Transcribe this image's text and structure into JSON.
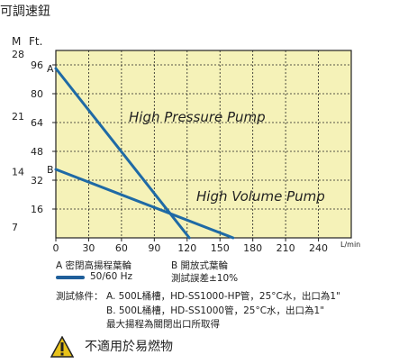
{
  "page_title": "可調速鈕",
  "chart_data": {
    "type": "line",
    "x_ticks": [
      "0",
      "30",
      "60",
      "90",
      "120",
      "150",
      "180",
      "210",
      "240"
    ],
    "x_unit": "L/min",
    "y_left_label": "M",
    "y_right_label": "Ft.",
    "y_ticks_ft": [
      "96",
      "80",
      "64",
      "48",
      "32",
      "16"
    ],
    "y_ticks_m": [
      "28",
      "21",
      "14",
      "7"
    ],
    "xlim": [
      0,
      270
    ],
    "ylim_ft": [
      0,
      104
    ],
    "grid": true,
    "background_color": "#f5f2b8",
    "line_color": "#1f6aa5",
    "series": [
      {
        "name": "High Pressure Pump",
        "marker": "A",
        "x": [
          0,
          122
        ],
        "y": [
          94,
          0
        ]
      },
      {
        "name": "High Volume Pump",
        "marker": "B",
        "x": [
          0,
          162
        ],
        "y": [
          38,
          0
        ]
      }
    ]
  },
  "legend": {
    "a_text": "A 密閉高揚程葉輪",
    "b_text": "B 開放式葉輪",
    "line_label": "50/60 Hz",
    "tolerance": "測試誤差±10%"
  },
  "conditions": {
    "label": "測試條件：",
    "line_a": "A. 500L桶槽，HD-SS1000-HP管，25°C水，出口為1\"",
    "line_b": "B. 500L桶槽，HD-SS1000管，25°C水，出口為1\"",
    "line_c": "最大揚程為關閉出口所取得"
  },
  "warning": {
    "icon": "warning-triangle-icon",
    "text": "不適用於易燃物",
    "icon_color": "#e8c21a"
  }
}
